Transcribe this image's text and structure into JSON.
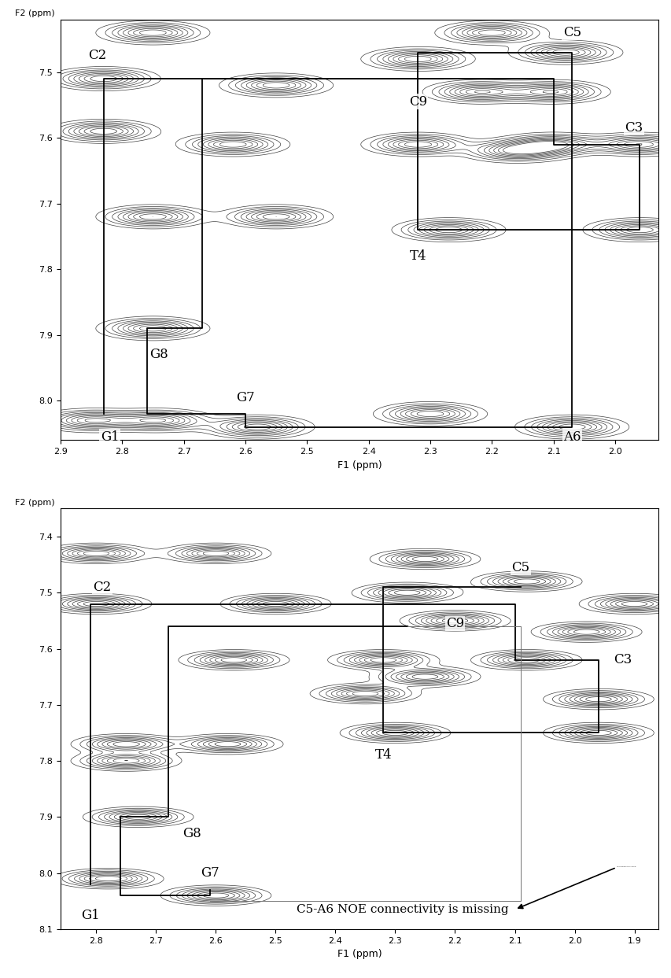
{
  "chart_data": [
    {
      "type": "contour",
      "xlabel": "F1 (ppm)",
      "ylabel": "F2 (ppm)",
      "xlim": [
        2.9,
        1.93
      ],
      "ylim": [
        7.42,
        8.06
      ],
      "xticks": [
        2.9,
        2.8,
        2.7,
        2.6,
        2.5,
        2.4,
        2.3,
        2.2,
        2.1,
        2.0
      ],
      "yticks": [
        7.5,
        7.6,
        7.7,
        7.8,
        7.9,
        8.0
      ],
      "peaks": {
        "x": [
          2.83,
          2.55,
          2.75,
          2.32,
          2.2,
          2.08,
          2.22,
          2.1,
          2.62,
          2.32,
          2.1,
          2.16,
          1.96,
          2.83,
          2.75,
          2.55,
          2.27,
          1.96,
          2.75,
          2.85,
          2.74,
          2.58,
          2.3,
          2.07
        ],
        "y": [
          7.51,
          7.52,
          7.44,
          7.48,
          7.44,
          7.47,
          7.53,
          7.53,
          7.61,
          7.61,
          7.61,
          7.62,
          7.61,
          7.59,
          7.72,
          7.72,
          7.74,
          7.74,
          7.89,
          8.03,
          8.03,
          8.04,
          8.02,
          8.04
        ]
      },
      "labels": [
        {
          "text": "C2",
          "x": 2.84,
          "y": 7.475
        },
        {
          "text": "C5",
          "x": 2.07,
          "y": 7.44
        },
        {
          "text": "C9",
          "x": 2.32,
          "y": 7.545
        },
        {
          "text": "C3",
          "x": 1.97,
          "y": 7.585
        },
        {
          "text": "T4",
          "x": 2.32,
          "y": 7.78
        },
        {
          "text": "G8",
          "x": 2.74,
          "y": 7.93
        },
        {
          "text": "G7",
          "x": 2.6,
          "y": 7.995
        },
        {
          "text": "G1",
          "x": 2.82,
          "y": 8.055
        },
        {
          "text": "A6",
          "x": 2.07,
          "y": 8.055
        }
      ],
      "paths": [
        {
          "x": [
            2.83,
            2.83,
            2.1,
            2.1,
            1.96,
            1.96,
            2.32,
            2.32,
            2.07,
            2.07,
            2.6,
            2.6,
            2.76,
            2.76,
            2.67,
            2.67,
            2.28
          ],
          "y": [
            8.02,
            7.51,
            7.51,
            7.61,
            7.61,
            7.74,
            7.74,
            7.47,
            7.47,
            8.04,
            8.04,
            8.02,
            8.02,
            7.89,
            7.89,
            7.51,
            7.51
          ]
        }
      ]
    },
    {
      "type": "contour",
      "xlabel": "F1 (ppm)",
      "ylabel": "F2 (ppm)",
      "xlim": [
        2.86,
        1.86
      ],
      "ylim": [
        7.35,
        8.1
      ],
      "xticks": [
        2.8,
        2.7,
        2.6,
        2.5,
        2.4,
        2.3,
        2.2,
        2.1,
        2.0,
        1.9
      ],
      "yticks": [
        7.4,
        7.5,
        7.6,
        7.7,
        7.8,
        7.9,
        8.0,
        8.1
      ],
      "peaks": {
        "x": [
          2.8,
          2.6,
          2.25,
          2.28,
          2.08,
          2.8,
          2.5,
          2.2,
          1.9,
          1.98,
          2.57,
          2.32,
          2.08,
          2.25,
          2.35,
          1.96,
          2.3,
          1.96,
          2.75,
          2.75,
          2.58,
          2.73,
          2.78,
          2.6
        ],
        "y": [
          7.43,
          7.43,
          7.44,
          7.5,
          7.48,
          7.52,
          7.52,
          7.55,
          7.52,
          7.57,
          7.62,
          7.62,
          7.62,
          7.65,
          7.68,
          7.69,
          7.75,
          7.75,
          7.77,
          7.8,
          7.77,
          7.9,
          8.01,
          8.04
        ]
      },
      "labels": [
        {
          "text": "C2",
          "x": 2.79,
          "y": 7.49
        },
        {
          "text": "C5",
          "x": 2.09,
          "y": 7.455
        },
        {
          "text": "C9",
          "x": 2.2,
          "y": 7.555
        },
        {
          "text": "C3",
          "x": 1.92,
          "y": 7.62
        },
        {
          "text": "T4",
          "x": 2.32,
          "y": 7.79
        },
        {
          "text": "G8",
          "x": 2.64,
          "y": 7.93
        },
        {
          "text": "G7",
          "x": 2.61,
          "y": 8.0
        },
        {
          "text": "G1",
          "x": 2.81,
          "y": 8.075
        }
      ],
      "paths": [
        {
          "x": [
            2.81,
            2.81,
            2.1,
            2.1,
            1.96,
            1.96,
            2.32,
            2.32,
            2.09
          ],
          "y": [
            8.02,
            7.52,
            7.52,
            7.62,
            7.62,
            7.75,
            7.75,
            7.49,
            7.49
          ]
        },
        {
          "x": [
            2.28,
            2.68,
            2.68,
            2.76,
            2.76,
            2.61,
            2.61
          ],
          "y": [
            7.56,
            7.56,
            7.9,
            7.9,
            8.04,
            8.04,
            8.03
          ]
        }
      ],
      "missing_path": {
        "x": [
          2.61,
          2.09,
          2.09,
          2.28
        ],
        "y": [
          8.05,
          8.05,
          7.56,
          7.56
        ]
      },
      "annotation": {
        "text": "C5-A6 NOE connectivity is missing",
        "x": 2.1,
        "y": 8.065,
        "arrow_from_x": 1.93,
        "arrow_from_y": 7.99
      }
    }
  ]
}
